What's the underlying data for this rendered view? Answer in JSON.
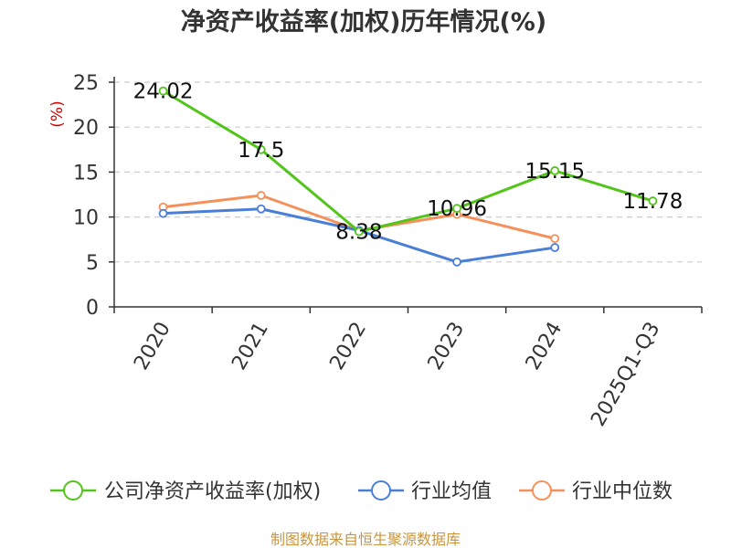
{
  "chart_data": {
    "type": "line",
    "title": "净资产收益率(加权)历年情况(%)",
    "ylabel": "(%)",
    "xlabel": "",
    "categories": [
      "2020",
      "2021",
      "2022",
      "2023",
      "2024",
      "2025Q1-Q3"
    ],
    "ylim": [
      0,
      25
    ],
    "yticks": [
      0,
      5,
      10,
      15,
      20,
      25
    ],
    "grid": true,
    "legend_position": "bottom",
    "series": [
      {
        "name": "公司净资产收益率(加权)",
        "color": "#52c41a",
        "values": [
          24.02,
          17.5,
          8.38,
          10.96,
          15.15,
          11.78
        ],
        "labels": [
          "24.02",
          "17.5",
          "8.38",
          "10.96",
          "15.15",
          "11.78"
        ]
      },
      {
        "name": "行业均值",
        "color": "#4a7fd8",
        "values": [
          10.4,
          10.9,
          8.5,
          5.0,
          6.6,
          null
        ]
      },
      {
        "name": "行业中位数",
        "color": "#f5905a",
        "values": [
          11.1,
          12.4,
          8.5,
          10.3,
          7.6,
          null
        ]
      }
    ],
    "source": "制图数据来自恒生聚源数据库"
  }
}
